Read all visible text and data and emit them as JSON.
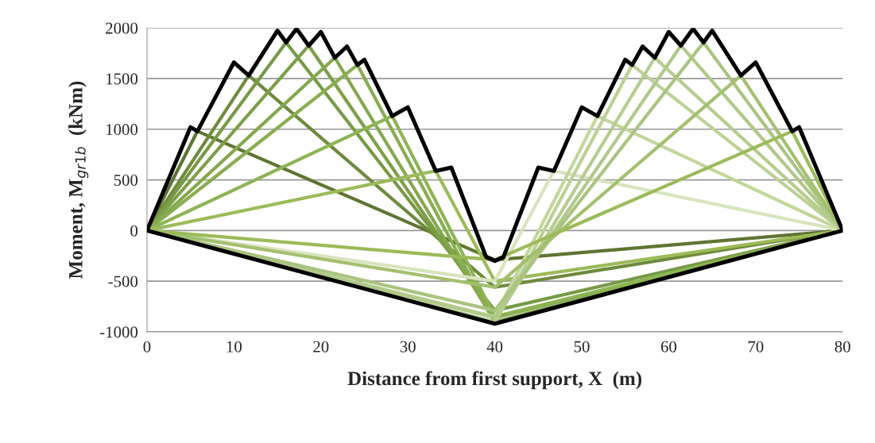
{
  "chart_data": {
    "type": "line",
    "xlabel": "Distance from first support, X  (m)",
    "ylabel": "Moment, M$_{gr1b}$  (kNm)",
    "xlim": [
      0,
      80
    ],
    "xticks": [
      0,
      10,
      20,
      30,
      40,
      50,
      60,
      70,
      80
    ],
    "ylim": [
      -1000,
      2000
    ],
    "yticks": [
      -1000,
      -500,
      0,
      500,
      1000,
      1500,
      2000
    ],
    "grid": "y",
    "legend": false,
    "line_style": "solid",
    "marker": "none",
    "series": [
      {
        "color": "#5f7532",
        "x": [
          0,
          5.8,
          40,
          80
        ],
        "values": [
          0,
          980,
          -290,
          0
        ]
      },
      {
        "color": "#6e8b3d",
        "x": [
          0,
          11.7,
          40,
          80
        ],
        "values": [
          0,
          1530,
          -560,
          0
        ]
      },
      {
        "color": "#779a45",
        "x": [
          0,
          16,
          40,
          80
        ],
        "values": [
          0,
          1856,
          -790,
          0
        ]
      },
      {
        "color": "#7d9f48",
        "x": [
          0,
          18.6,
          40,
          80
        ],
        "values": [
          0,
          1825,
          -860,
          0
        ]
      },
      {
        "color": "#84a84e",
        "x": [
          0,
          21.6,
          40,
          80
        ],
        "values": [
          0,
          1705,
          -900,
          0
        ]
      },
      {
        "color": "#88ad50",
        "x": [
          0,
          24.2,
          40,
          80
        ],
        "values": [
          0,
          1634,
          -910,
          0
        ]
      },
      {
        "color": "#8db454",
        "x": [
          0,
          28.2,
          40,
          80
        ],
        "values": [
          0,
          1130,
          -850,
          0
        ]
      },
      {
        "color": "#9bbb59",
        "x": [
          0,
          33.2,
          40,
          80
        ],
        "values": [
          0,
          588,
          -500,
          0
        ]
      },
      {
        "color": "#d7e4bd",
        "x": [
          0,
          40,
          46.8,
          80
        ],
        "values": [
          0,
          -500,
          588,
          0
        ]
      },
      {
        "color": "#c3d69b",
        "x": [
          0,
          40,
          51.8,
          80
        ],
        "values": [
          0,
          -850,
          1130,
          0
        ]
      },
      {
        "color": "#bcd196",
        "x": [
          0,
          40,
          55.8,
          80
        ],
        "values": [
          0,
          -910,
          1634,
          0
        ]
      },
      {
        "color": "#b5cc8e",
        "x": [
          0,
          40,
          58.4,
          80
        ],
        "values": [
          0,
          -900,
          1705,
          0
        ]
      },
      {
        "color": "#b0c98a",
        "x": [
          0,
          40,
          61.4,
          80
        ],
        "values": [
          0,
          -860,
          1825,
          0
        ]
      },
      {
        "color": "#a9c480",
        "x": [
          0,
          40,
          64,
          80
        ],
        "values": [
          0,
          -790,
          1856,
          0
        ]
      },
      {
        "color": "#a3c06f",
        "x": [
          0,
          40,
          68.3,
          80
        ],
        "values": [
          0,
          -560,
          1530,
          0
        ]
      },
      {
        "color": "#9bbb59",
        "x": [
          0,
          40,
          74.2,
          80
        ],
        "values": [
          0,
          -290,
          980,
          0
        ]
      },
      {
        "color": "#000000",
        "x": [
          0,
          5,
          5.8,
          10,
          11.7,
          15,
          16,
          17.2,
          18.6,
          20,
          21.6,
          23,
          24.2,
          25,
          28.2,
          30,
          33.2,
          35,
          39,
          40,
          41,
          45,
          46.8,
          50,
          51.8,
          55,
          55.8,
          57,
          58.4,
          60,
          61.4,
          62.8,
          64,
          65,
          68.3,
          70,
          74.2,
          75,
          80
        ],
        "values": [
          0,
          1020,
          980,
          1660,
          1530,
          1973,
          1856,
          1992,
          1825,
          1960,
          1705,
          1817,
          1634,
          1686,
          1130,
          1216,
          588,
          622,
          -261,
          -300,
          -261,
          622,
          588,
          1216,
          1130,
          1686,
          1634,
          1817,
          1705,
          1960,
          1825,
          1992,
          1856,
          1973,
          1530,
          1660,
          980,
          1020,
          0
        ]
      },
      {
        "color": "#000000",
        "x": [
          0,
          40,
          80
        ],
        "values": [
          0,
          -920,
          0
        ]
      }
    ]
  }
}
